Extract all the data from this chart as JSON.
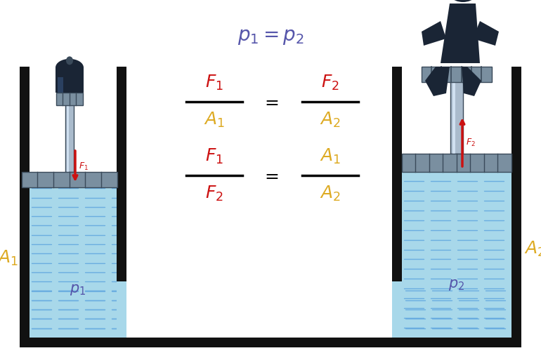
{
  "bg_color": "#ffffff",
  "water_color": "#a8d8ea",
  "water_line_color": "#6aade0",
  "tank_color": "#111111",
  "piston_gray_light": "#aabbcc",
  "piston_gray_mid": "#7a8fa0",
  "piston_gray_dark": "#3a4a5a",
  "weight_color": "#1a2535",
  "person_color": "#1a2535",
  "arrow_color": "#cc1111",
  "eq_color": "#5555aa",
  "F_color": "#cc1111",
  "A_color": "#ddaa22",
  "p_color": "#5555aa",
  "figw": 7.7,
  "figh": 5.13,
  "dpi": 100
}
